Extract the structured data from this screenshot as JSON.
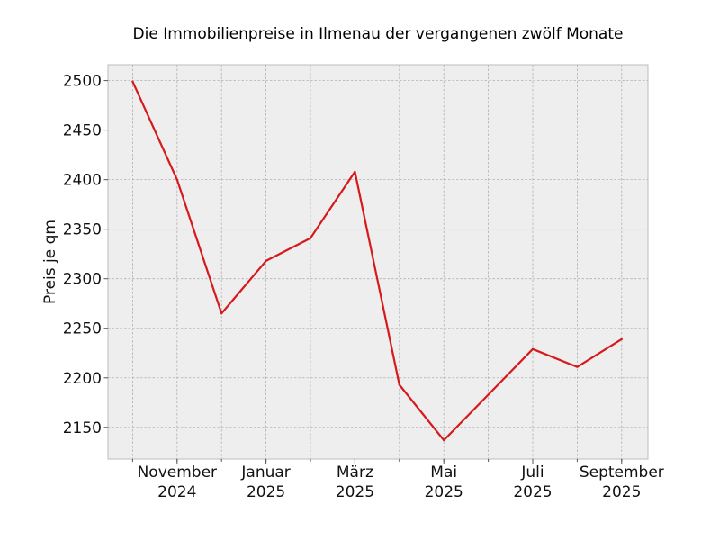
{
  "chart_data": {
    "type": "line",
    "title": "Die Immobilienpreise in Ilmenau der vergangenen zwölf Monate",
    "xlabel": "",
    "ylabel": "Preis je qm",
    "x": [
      "2024-10",
      "2024-11",
      "2024-12",
      "2025-01",
      "2025-02",
      "2025-03",
      "2025-04",
      "2025-05",
      "2025-06",
      "2025-07",
      "2025-08",
      "2025-09"
    ],
    "series": [
      {
        "values": [
          2499,
          2400,
          2265,
          2318,
          2341,
          2408,
          2193,
          2137,
          2183,
          2229,
          2211,
          2239
        ]
      }
    ],
    "ylim": [
      2118,
      2516
    ],
    "yticks": [
      2150,
      2200,
      2250,
      2300,
      2350,
      2400,
      2450,
      2500
    ],
    "xtick_labels": [
      {
        "x": "2024-11",
        "month": "November",
        "year": "2024"
      },
      {
        "x": "2025-01",
        "month": "Januar",
        "year": "2025"
      },
      {
        "x": "2025-03",
        "month": "März",
        "year": "2025"
      },
      {
        "x": "2025-05",
        "month": "Mai",
        "year": "2025"
      },
      {
        "x": "2025-07",
        "month": "Juli",
        "year": "2025"
      },
      {
        "x": "2025-09",
        "month": "September",
        "year": "2025"
      }
    ],
    "grid": true,
    "colors": {
      "line": "#d7191c",
      "plot_background": "#eeeeee",
      "grid": "#b0b0b0",
      "frame": "#bcbcbc"
    }
  }
}
